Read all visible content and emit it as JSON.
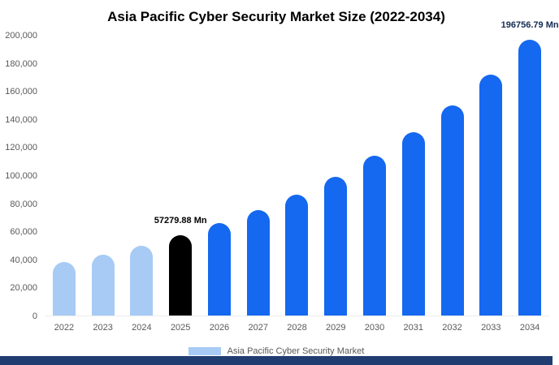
{
  "chart_data": {
    "type": "bar",
    "title": "Asia Pacific Cyber Security Market Size (2022-2034)",
    "xlabel": "",
    "ylabel": "",
    "value_unit": "Mn",
    "categories": [
      "2022",
      "2023",
      "2024",
      "2025",
      "2026",
      "2027",
      "2028",
      "2029",
      "2030",
      "2031",
      "2032",
      "2033",
      "2034"
    ],
    "values": [
      38000,
      43600,
      50000,
      57279.88,
      65700,
      75400,
      86400,
      99100,
      113700,
      130400,
      149600,
      171500,
      196756.79
    ],
    "bar_colors": [
      "#a7cbf5",
      "#a7cbf5",
      "#a7cbf5",
      "#000000",
      "#1568f0",
      "#1568f0",
      "#1568f0",
      "#1568f0",
      "#1568f0",
      "#1568f0",
      "#1568f0",
      "#1568f0",
      "#1568f0"
    ],
    "ylim": [
      0,
      200000
    ],
    "yticks": [
      0,
      20000,
      40000,
      60000,
      80000,
      100000,
      120000,
      140000,
      160000,
      180000,
      200000
    ],
    "ytick_labels": [
      "0",
      "20,000",
      "40,000",
      "60,000",
      "80,000",
      "100,000",
      "120,000",
      "140,000",
      "160,000",
      "180,000",
      "200,000"
    ],
    "grid": false,
    "legend": {
      "position": "bottom",
      "entries": [
        {
          "label": "Asia Pacific Cyber Security Market",
          "color": "#a7cbf5"
        }
      ]
    },
    "annotations": [
      {
        "category": "2025",
        "text": "57279.88 Mn",
        "color": "#000000"
      },
      {
        "category": "2034",
        "text": "196756.79 Mn",
        "color": "#132b52"
      }
    ]
  },
  "footer": {
    "bar_color": "#1f3d70"
  }
}
